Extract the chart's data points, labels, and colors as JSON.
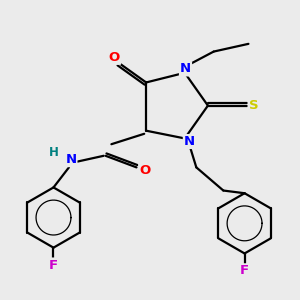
{
  "bg_color": "#ebebeb",
  "atom_colors": {
    "N": "#0000ff",
    "O": "#ff0000",
    "S": "#cccc00",
    "F": "#cc00cc",
    "H": "#008080",
    "C": "#000000"
  },
  "lw": 1.6
}
